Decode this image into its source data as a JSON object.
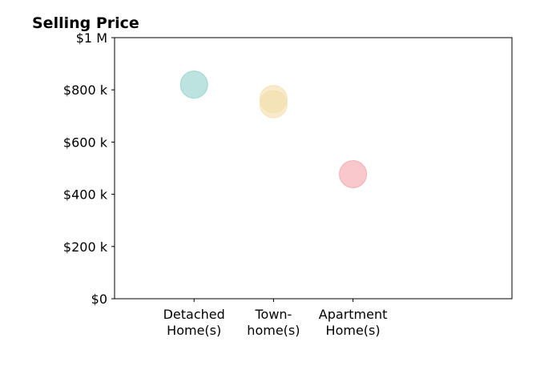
{
  "chart_data": {
    "type": "scatter",
    "title": "Selling Price",
    "xlabel": "",
    "ylabel": "",
    "categories": [
      [
        "Detached",
        "Home(s)"
      ],
      [
        "Town-",
        "home(s)"
      ],
      [
        "Apartment",
        "Home(s)"
      ]
    ],
    "ylim": [
      0,
      1000000
    ],
    "y_ticks": [
      {
        "value": 0,
        "label": "$0"
      },
      {
        "value": 200000,
        "label": "$200 k"
      },
      {
        "value": 400000,
        "label": "$400 k"
      },
      {
        "value": 600000,
        "label": "$600 k"
      },
      {
        "value": 800000,
        "label": "$800 k"
      },
      {
        "value": 1000000,
        "label": "$1 M"
      }
    ],
    "grid": false,
    "series": [
      {
        "category": 0,
        "values": [
          820000
        ],
        "color": "#8fd1ca"
      },
      {
        "category": 1,
        "values": [
          745000,
          765000
        ],
        "color": "#f4deaa"
      },
      {
        "category": 2,
        "values": [
          477000
        ],
        "color": "#f4a3ac"
      }
    ]
  }
}
